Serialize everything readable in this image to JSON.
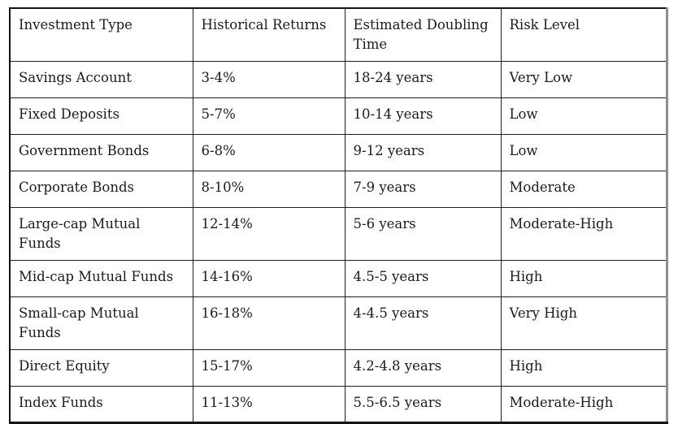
{
  "chart_data": {
    "type": "table",
    "title": "",
    "columns": [
      "Investment Type",
      "Historical Returns",
      "Estimated Doubling Time",
      "Risk Level"
    ],
    "rows": [
      [
        "Savings Account",
        "3-4%",
        "18-24 years",
        "Very Low"
      ],
      [
        "Fixed Deposits",
        "5-7%",
        "10-14 years",
        "Low"
      ],
      [
        "Government Bonds",
        "6-8%",
        "9-12 years",
        "Low"
      ],
      [
        "Corporate Bonds",
        "8-10%",
        "7-9 years",
        "Moderate"
      ],
      [
        "Large-cap Mutual Funds",
        "12-14%",
        "5-6 years",
        "Moderate-High"
      ],
      [
        "Mid-cap Mutual Funds",
        "14-16%",
        "4.5-5 years",
        "High"
      ],
      [
        "Small-cap Mutual Funds",
        "16-18%",
        "4-4.5 years",
        "Very High"
      ],
      [
        "Direct Equity",
        "15-17%",
        "4.2-4.8 years",
        "High"
      ],
      [
        "Index Funds",
        "11-13%",
        "5.5-6.5 years",
        "Moderate-High"
      ]
    ],
    "legend": null,
    "grid": "full-borders"
  },
  "colors": {
    "background": "#ffffff",
    "text": "#1b1b1b",
    "inner_border": "#1f1f1f",
    "outer_border": "#141414",
    "outer_right_border": "#8f8f8f"
  }
}
